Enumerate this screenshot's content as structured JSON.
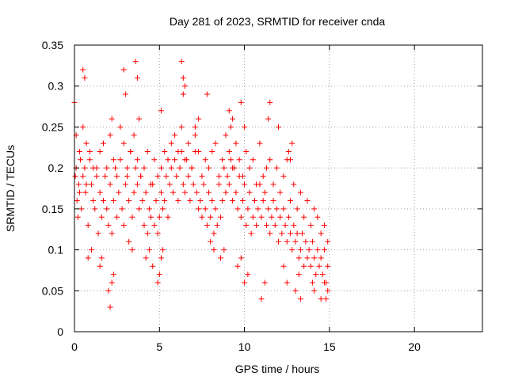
{
  "chart_data": {
    "type": "scatter",
    "title": "Day 281 of 2023, SRMTID for receiver cnda",
    "xlabel": "GPS time / hours",
    "ylabel": "SRMTID / TECUs",
    "xlim": [
      0,
      24
    ],
    "ylim": [
      0,
      0.35
    ],
    "x_ticks": [
      0,
      5,
      10,
      15,
      20
    ],
    "x_tick_labels": [
      "0",
      "5",
      "10",
      "15",
      "20"
    ],
    "y_ticks": [
      0,
      0.05,
      0.1,
      0.15,
      0.2,
      0.25,
      0.3,
      0.35
    ],
    "y_tick_labels": [
      "0",
      "0.05",
      "0.1",
      "0.15",
      "0.2",
      "0.25",
      "0.3",
      "0.35"
    ],
    "grid": true,
    "marker": "plus",
    "color": "#ff0000",
    "series": [
      {
        "name": "SRMTID",
        "x": [
          0.05,
          0.1,
          0.15,
          0.2,
          0.25,
          0.3,
          0.35,
          0.4,
          0.5,
          0.6,
          0.65,
          0.7,
          0.8,
          0.9,
          1.0,
          1.1,
          1.2,
          1.3,
          1.4,
          1.5,
          1.6,
          1.7,
          1.8,
          1.9,
          2.0,
          2.1,
          2.2,
          2.3,
          2.4,
          2.5,
          2.6,
          2.7,
          2.8,
          2.9,
          3.0,
          3.1,
          3.2,
          3.3,
          3.4,
          3.5,
          3.6,
          3.7,
          3.8,
          3.9,
          4.0,
          4.1,
          4.2,
          4.3,
          4.4,
          4.5,
          4.6,
          4.7,
          4.8,
          4.9,
          5.0,
          5.1,
          5.2,
          5.3,
          5.4,
          5.5,
          5.6,
          5.7,
          5.8,
          5.9,
          6.0,
          6.1,
          6.2,
          6.3,
          6.4,
          6.5,
          6.6,
          6.7,
          6.8,
          6.9,
          7.0,
          7.1,
          7.2,
          7.3,
          7.4,
          7.5,
          7.6,
          7.7,
          7.8,
          7.9,
          8.0,
          8.1,
          8.2,
          8.3,
          8.4,
          8.5,
          8.6,
          8.7,
          8.8,
          8.9,
          9.0,
          9.1,
          9.2,
          9.3,
          9.4,
          9.5,
          9.6,
          9.7,
          9.8,
          9.9,
          10.0,
          10.1,
          10.2,
          10.3,
          10.4,
          10.5,
          10.6,
          10.7,
          10.8,
          10.9,
          11.0,
          11.1,
          11.2,
          11.3,
          11.4,
          11.5,
          11.6,
          11.7,
          11.8,
          11.9,
          12.0,
          12.1,
          12.2,
          12.3,
          12.4,
          12.5,
          12.6,
          12.7,
          12.8,
          12.9,
          13.0,
          13.1,
          13.2,
          13.3,
          13.4,
          13.5,
          13.6,
          13.7,
          13.8,
          13.9,
          14.0,
          14.1,
          14.2,
          14.3,
          14.4,
          14.5,
          14.6,
          14.7,
          14.8,
          14.9,
          0.1,
          0.3,
          0.5,
          0.7,
          0.9,
          1.1,
          1.3,
          1.5,
          1.7,
          1.9,
          2.1,
          2.3,
          2.5,
          2.7,
          2.9,
          3.1,
          3.3,
          3.5,
          3.7,
          3.9,
          4.1,
          4.3,
          4.5,
          4.7,
          4.9,
          5.1,
          5.3,
          5.5,
          5.7,
          5.9,
          6.1,
          6.3,
          6.5,
          6.7,
          6.9,
          7.1,
          7.3,
          7.5,
          7.7,
          7.9,
          8.1,
          8.3,
          8.5,
          8.7,
          8.9,
          9.1,
          9.3,
          9.5,
          9.7,
          9.9,
          10.1,
          10.3,
          10.5,
          10.7,
          10.9,
          11.1,
          11.3,
          11.5,
          11.7,
          11.9,
          12.1,
          12.3,
          12.5,
          12.7,
          12.9,
          13.1,
          13.3,
          13.5,
          13.7,
          13.9,
          14.1,
          14.3,
          14.5,
          14.7,
          14.9,
          0.0,
          0.5,
          0.6,
          2.2,
          2.9,
          3.0,
          3.6,
          3.7,
          3.8,
          6.3,
          6.4,
          6.5,
          6.4,
          5.1,
          7.1,
          7.3,
          7.8,
          9.1,
          9.2,
          9.3,
          9.8,
          10.0,
          11.4,
          11.5,
          12.0,
          12.6,
          12.7,
          12.8,
          2.0,
          2.1,
          2.2,
          2.3,
          1.5,
          1.6,
          4.6,
          4.9,
          5.0,
          5.1,
          5.2,
          10.0,
          10.2,
          11.0,
          11.2,
          12.3,
          12.5,
          13.0,
          13.2,
          13.3,
          14.0,
          14.1,
          14.5,
          14.7,
          14.8,
          14.9,
          4.2,
          4.4,
          3.2,
          3.4,
          0.8,
          1.0,
          8.0,
          8.2,
          8.6,
          8.8,
          9.6,
          9.8
        ],
        "y": [
          0.19,
          0.2,
          0.16,
          0.14,
          0.18,
          0.17,
          0.21,
          0.15,
          0.19,
          0.2,
          0.17,
          0.18,
          0.13,
          0.22,
          0.18,
          0.16,
          0.15,
          0.2,
          0.12,
          0.17,
          0.14,
          0.16,
          0.19,
          0.15,
          0.13,
          0.18,
          0.12,
          0.16,
          0.2,
          0.14,
          0.17,
          0.21,
          0.15,
          0.13,
          0.18,
          0.19,
          0.16,
          0.22,
          0.14,
          0.17,
          0.2,
          0.18,
          0.15,
          0.19,
          0.16,
          0.13,
          0.17,
          0.12,
          0.15,
          0.14,
          0.18,
          0.13,
          0.16,
          0.12,
          0.14,
          0.17,
          0.15,
          0.16,
          0.19,
          0.14,
          0.18,
          0.2,
          0.17,
          0.21,
          0.19,
          0.16,
          0.2,
          0.22,
          0.18,
          0.17,
          0.21,
          0.19,
          0.16,
          0.2,
          0.18,
          0.22,
          0.17,
          0.15,
          0.16,
          0.14,
          0.18,
          0.15,
          0.13,
          0.17,
          0.14,
          0.16,
          0.12,
          0.15,
          0.13,
          0.18,
          0.14,
          0.16,
          0.2,
          0.17,
          0.19,
          0.18,
          0.21,
          0.16,
          0.2,
          0.17,
          0.15,
          0.19,
          0.14,
          0.16,
          0.18,
          0.13,
          0.15,
          0.17,
          0.12,
          0.14,
          0.16,
          0.13,
          0.15,
          0.18,
          0.14,
          0.16,
          0.17,
          0.13,
          0.15,
          0.12,
          0.14,
          0.16,
          0.13,
          0.15,
          0.11,
          0.14,
          0.12,
          0.15,
          0.13,
          0.11,
          0.14,
          0.12,
          0.1,
          0.13,
          0.11,
          0.12,
          0.09,
          0.1,
          0.12,
          0.08,
          0.11,
          0.09,
          0.1,
          0.08,
          0.11,
          0.09,
          0.07,
          0.1,
          0.08,
          0.09,
          0.07,
          0.1,
          0.06,
          0.08,
          0.24,
          0.22,
          0.25,
          0.23,
          0.21,
          0.2,
          0.19,
          0.22,
          0.23,
          0.2,
          0.24,
          0.21,
          0.19,
          0.25,
          0.23,
          0.2,
          0.22,
          0.24,
          0.21,
          0.19,
          0.2,
          0.22,
          0.18,
          0.21,
          0.19,
          0.2,
          0.22,
          0.21,
          0.23,
          0.24,
          0.22,
          0.25,
          0.21,
          0.23,
          0.2,
          0.24,
          0.22,
          0.19,
          0.21,
          0.2,
          0.22,
          0.23,
          0.19,
          0.21,
          0.24,
          0.22,
          0.2,
          0.23,
          0.21,
          0.19,
          0.22,
          0.2,
          0.21,
          0.18,
          0.23,
          0.19,
          0.2,
          0.21,
          0.18,
          0.2,
          0.17,
          0.19,
          0.21,
          0.16,
          0.18,
          0.15,
          0.17,
          0.14,
          0.16,
          0.13,
          0.15,
          0.14,
          0.12,
          0.13,
          0.11,
          0.28,
          0.32,
          0.31,
          0.26,
          0.32,
          0.29,
          0.33,
          0.31,
          0.26,
          0.33,
          0.31,
          0.3,
          0.29,
          0.27,
          0.25,
          0.26,
          0.29,
          0.27,
          0.25,
          0.26,
          0.28,
          0.25,
          0.26,
          0.28,
          0.25,
          0.22,
          0.21,
          0.23,
          0.05,
          0.03,
          0.06,
          0.07,
          0.08,
          0.09,
          0.08,
          0.06,
          0.07,
          0.09,
          0.1,
          0.06,
          0.07,
          0.04,
          0.06,
          0.08,
          0.06,
          0.05,
          0.07,
          0.04,
          0.06,
          0.05,
          0.04,
          0.06,
          0.04,
          0.05,
          0.09,
          0.1,
          0.11,
          0.1,
          0.09,
          0.1,
          0.11,
          0.1,
          0.09,
          0.1,
          0.08,
          0.09
        ]
      }
    ]
  }
}
